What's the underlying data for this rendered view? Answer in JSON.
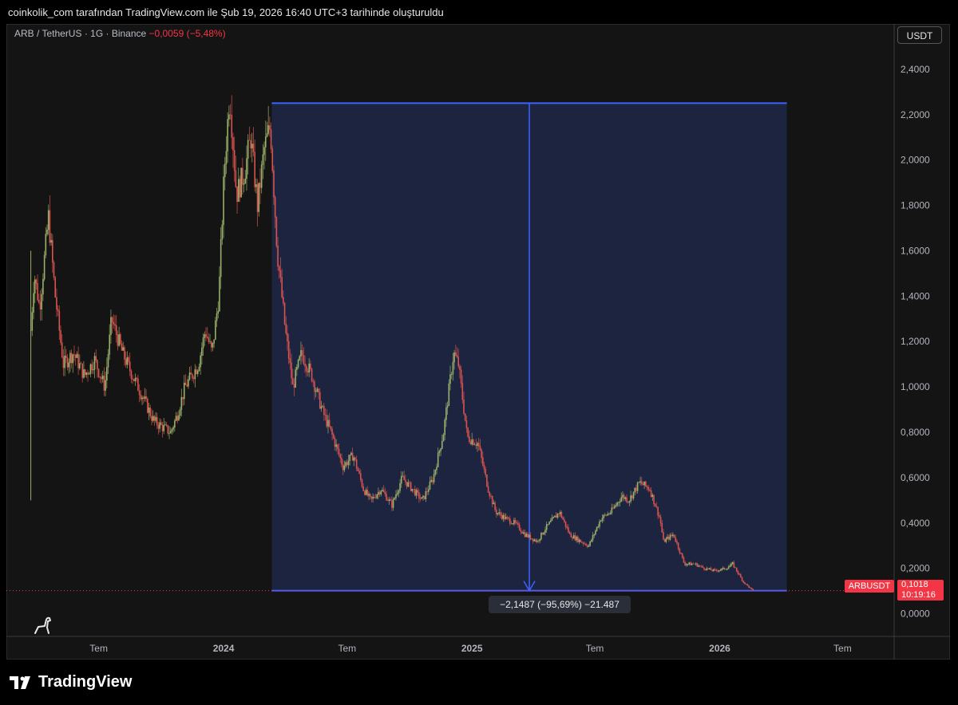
{
  "header": {
    "attribution": "coinkolik_com tarafından TradingView.com ile Şub 19, 2026 16:40 UTC+3 tarihinde oluşturuldu"
  },
  "legend": {
    "pair": "ARB / TetherUS · 1G · Binance",
    "change": "−0,0059 (−5,48%)"
  },
  "currency_button": "USDT",
  "measure_label": "−2,1487 (−95,69%) −21.487",
  "price_tag": {
    "symbol": "ARBUSDT",
    "price": "0,1018",
    "countdown": "10:19:16"
  },
  "brand": "TradingView",
  "colors": {
    "up": "#26a69a",
    "down": "#f23645",
    "price_line": "#d1c38a",
    "measure_fill": "#1c2541",
    "measure_line": "#3d63ff"
  },
  "chart_data": {
    "type": "line",
    "title": "ARB / TetherUS · 1G · Binance",
    "ylim": [
      -0.1,
      2.6
    ],
    "y_ticks": [
      "2,4000",
      "2,2000",
      "2,0000",
      "1,8000",
      "1,6000",
      "1,4000",
      "1,2000",
      "1,0000",
      "0,8000",
      "0,6000",
      "0,4000",
      "0,2000",
      "0,0000"
    ],
    "y_tick_values": [
      2.4,
      2.2,
      2.0,
      1.8,
      1.6,
      1.4,
      1.2,
      1.0,
      0.8,
      0.6,
      0.4,
      0.2,
      0.0
    ],
    "x_ticks": [
      {
        "label": "Tem",
        "date": "2023-07-01"
      },
      {
        "label": "2024",
        "date": "2024-01-01"
      },
      {
        "label": "Tem",
        "date": "2024-07-01"
      },
      {
        "label": "2025",
        "date": "2025-01-01"
      },
      {
        "label": "Tem",
        "date": "2025-07-01"
      },
      {
        "label": "2026",
        "date": "2026-01-01"
      },
      {
        "label": "Tem",
        "date": "2026-07-01"
      }
    ],
    "xlim": [
      "2023-02-15",
      "2026-09-15"
    ],
    "series": [
      {
        "values_x": [
          "2023-03-23",
          "2023-03-28",
          "2023-04-05",
          "2023-04-18",
          "2023-04-28",
          "2023-05-10",
          "2023-05-25",
          "2023-06-10",
          "2023-06-25",
          "2023-07-10",
          "2023-07-20",
          "2023-08-05",
          "2023-08-20",
          "2023-09-05",
          "2023-09-20",
          "2023-10-05",
          "2023-10-15",
          "2023-10-25",
          "2023-11-05",
          "2023-11-15",
          "2023-11-25",
          "2023-12-05",
          "2023-12-15",
          "2023-12-25",
          "2024-01-02",
          "2024-01-10",
          "2024-01-20",
          "2024-02-01",
          "2024-02-10",
          "2024-02-20",
          "2024-03-01",
          "2024-03-10",
          "2024-03-20",
          "2024-04-01",
          "2024-04-12",
          "2024-04-25",
          "2024-05-10",
          "2024-05-25",
          "2024-06-10",
          "2024-06-25",
          "2024-07-10",
          "2024-07-25",
          "2024-08-05",
          "2024-08-20",
          "2024-09-05",
          "2024-09-20",
          "2024-10-05",
          "2024-10-20",
          "2024-11-05",
          "2024-11-20",
          "2024-12-05",
          "2024-12-12",
          "2024-12-25",
          "2025-01-10",
          "2025-01-25",
          "2025-02-05",
          "2025-02-20",
          "2025-03-05",
          "2025-03-20",
          "2025-04-07",
          "2025-04-20",
          "2025-05-10",
          "2025-05-25",
          "2025-06-10",
          "2025-06-22",
          "2025-07-10",
          "2025-07-25",
          "2025-08-10",
          "2025-08-20",
          "2025-09-05",
          "2025-09-20",
          "2025-10-05",
          "2025-10-10",
          "2025-10-25",
          "2025-11-10",
          "2025-11-25",
          "2025-12-10",
          "2025-12-25",
          "2026-01-10",
          "2026-01-20",
          "2026-02-05",
          "2026-02-19"
        ],
        "values": [
          1.25,
          1.5,
          1.35,
          1.75,
          1.4,
          1.1,
          1.15,
          1.05,
          1.12,
          1.0,
          1.3,
          1.15,
          1.05,
          0.95,
          0.85,
          0.82,
          0.8,
          0.88,
          1.0,
          1.05,
          1.1,
          1.25,
          1.15,
          1.4,
          1.95,
          2.3,
          1.85,
          1.95,
          2.1,
          1.8,
          2.05,
          2.15,
          1.6,
          1.25,
          1.0,
          1.15,
          1.05,
          0.9,
          0.78,
          0.65,
          0.7,
          0.55,
          0.5,
          0.55,
          0.48,
          0.6,
          0.55,
          0.5,
          0.6,
          0.8,
          1.15,
          1.1,
          0.78,
          0.75,
          0.55,
          0.45,
          0.42,
          0.4,
          0.35,
          0.32,
          0.38,
          0.45,
          0.35,
          0.32,
          0.3,
          0.42,
          0.45,
          0.52,
          0.5,
          0.58,
          0.55,
          0.42,
          0.32,
          0.35,
          0.22,
          0.22,
          0.2,
          0.19,
          0.2,
          0.22,
          0.14,
          0.1018
        ]
      }
    ],
    "measure": {
      "start_date": "2024-03-12",
      "end_date": "2026-04-10",
      "top": 2.2505,
      "bottom": 0.1018,
      "change": "−2,1487 (−95,69%) −21.487"
    }
  }
}
